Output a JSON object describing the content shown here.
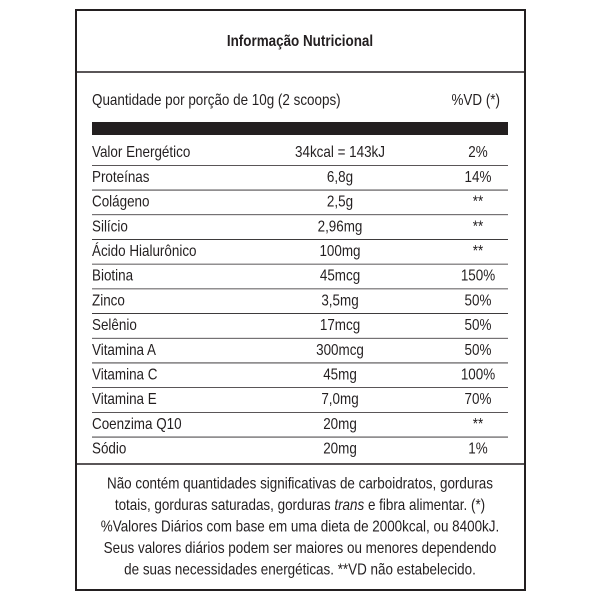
{
  "header": {
    "title": "Informação Nutricional",
    "serving": "Quantidade por porção de 10g (2 scoops)",
    "dv_header": "%VD (*)"
  },
  "table": {
    "rows": [
      [
        "Valor Energético",
        "34kcal = 143kJ",
        "2%"
      ],
      [
        "Proteínas",
        "6,8g",
        "14%"
      ],
      [
        "Colágeno",
        "2,5g",
        "**"
      ],
      [
        "Silício",
        "2,96mg",
        "**"
      ],
      [
        "Ácido Hialurônico",
        "100mg",
        "**"
      ],
      [
        "Biotina",
        "45mcg",
        "150%"
      ],
      [
        "Zinco",
        "3,5mg",
        "50%"
      ],
      [
        "Selênio",
        "17mcg",
        "50%"
      ],
      [
        "Vitamina A",
        "300mcg",
        "50%"
      ],
      [
        "Vitamina C",
        "45mg",
        "100%"
      ],
      [
        "Vitamina E",
        "7,0mg",
        "70%"
      ],
      [
        "Coenzima Q10",
        "20mg",
        "**"
      ],
      [
        "Sódio",
        "20mg",
        "1%"
      ]
    ]
  },
  "footer": {
    "lines": [
      [
        "Não contém quantidades significativas de carboidratos, gorduras"
      ],
      [
        "totais, gorduras saturadas, gorduras ",
        "trans",
        " e fibra alimentar. (*)"
      ],
      [
        "%Valores Diários com base em uma dieta de 2000kcal, ou 8400kJ."
      ],
      [
        "Seus valores diários podem ser maiores ou menores dependendo"
      ],
      [
        "de suas necessidades energéticas. **VD não estabelecido."
      ]
    ]
  }
}
